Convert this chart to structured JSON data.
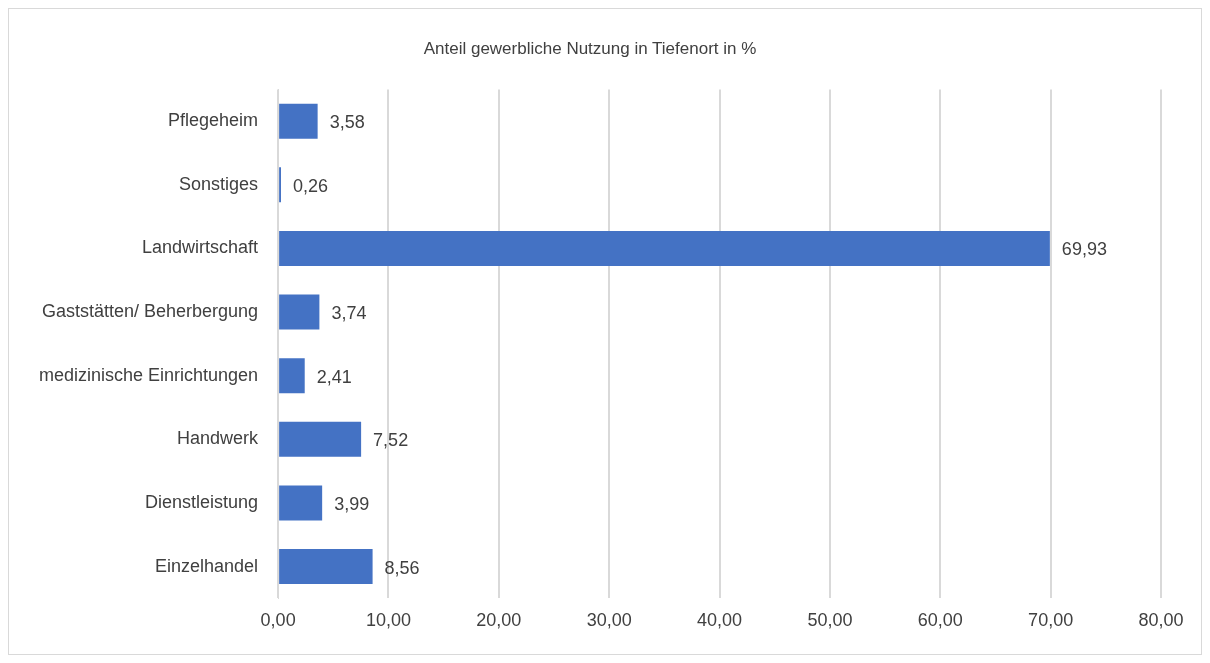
{
  "chart_data": {
    "type": "bar",
    "orientation": "horizontal",
    "title": "Anteil gewerbliche Nutzung in Tiefenort in %",
    "categories": [
      "Pflegeheim",
      "Sonstiges",
      "Landwirtschaft",
      "Gaststätten/ Beherbergung",
      "medizinische Einrichtungen",
      "Handwerk",
      "Dienstleistung",
      "Einzelhandel"
    ],
    "values": [
      3.58,
      0.26,
      69.93,
      3.74,
      2.41,
      7.52,
      3.99,
      8.56
    ],
    "value_labels": [
      "3,58",
      "0,26",
      "69,93",
      "3,74",
      "2,41",
      "7,52",
      "3,99",
      "8,56"
    ],
    "color": "#4472c4",
    "xlim": [
      0,
      80
    ],
    "xticks": [
      {
        "value": 0,
        "label": "0,00"
      },
      {
        "value": 10,
        "label": "10,00"
      },
      {
        "value": 20,
        "label": "20,00"
      },
      {
        "value": 30,
        "label": "30,00"
      },
      {
        "value": 40,
        "label": "40,00"
      },
      {
        "value": 50,
        "label": "50,00"
      },
      {
        "value": 60,
        "label": "60,00"
      },
      {
        "value": 70,
        "label": "70,00"
      },
      {
        "value": 80,
        "label": "80,00"
      }
    ],
    "grid": "x",
    "legend": false
  }
}
